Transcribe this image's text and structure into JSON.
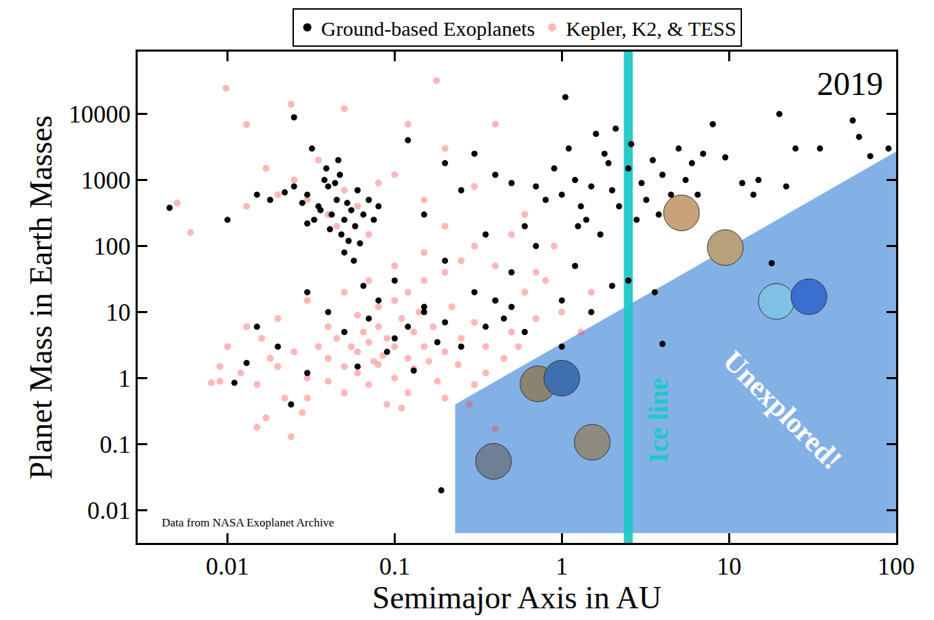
{
  "chart_data": {
    "type": "scatter",
    "log": true,
    "grid": false,
    "legend": "top",
    "xlabel": "Semimajor Axis in AU",
    "ylabel": "Planet Mass in Earth Masses",
    "xlim": [
      0.0029,
      100
    ],
    "ylim": [
      0.0032,
      88000
    ],
    "xticks": [
      0.01,
      0.1,
      1,
      10,
      100
    ],
    "yticks": [
      0.01,
      0.1,
      1,
      10,
      100,
      1000,
      10000
    ],
    "annotations": [
      "2019",
      "Data from NASA Exoplanet Archive"
    ],
    "unexplored": {
      "label": "Unexplored!",
      "color": "#6fa3e0",
      "x": [
        0.23,
        100,
        100,
        0.23
      ],
      "y": [
        0.4,
        2700,
        0.0045,
        0.0045
      ]
    },
    "ice_line": {
      "label": "Ice line",
      "x": 2.5,
      "color": "#1ec8c8"
    },
    "series": [
      {
        "name": "Kepler, K2, & TESS",
        "color": "#ff3333",
        "marker": "circle",
        "x": [
          0.02,
          0.025,
          0.03,
          0.035,
          0.04,
          0.045,
          0.05,
          0.055,
          0.06,
          0.065,
          0.07,
          0.075,
          0.08,
          0.085,
          0.09,
          0.1,
          0.11,
          0.12,
          0.13,
          0.14,
          0.15,
          0.17,
          0.2,
          0.22,
          0.25,
          0.3,
          0.35,
          0.4,
          0.5,
          0.6,
          0.7,
          0.8,
          1,
          1.3,
          0.015,
          0.018,
          0.012,
          0.01,
          0.009,
          0.03,
          0.05,
          0.07,
          0.09,
          0.12,
          0.2,
          0.3,
          0.04,
          0.06,
          0.08,
          0.1,
          0.12,
          0.15,
          0.2,
          0.25,
          0.3,
          0.4,
          0.5,
          0.2,
          0.15,
          0.1,
          0.07,
          0.05,
          0.03,
          0.02,
          0.017,
          0.022,
          0.028,
          0.016,
          0.013,
          0.04,
          0.06,
          0.08,
          0.1,
          0.13,
          0.16,
          0.18,
          0.24,
          0.35,
          0.45,
          0.55,
          0.28,
          0.11,
          0.024,
          0.015,
          0.008,
          0.005,
          0.006,
          0.009,
          0.0098,
          0.013,
          0.024,
          0.178,
          0.03,
          0.04,
          0.05,
          0.025,
          0.045,
          0.06,
          0.035,
          0.02,
          0.07,
          0.08,
          0.1,
          0.15,
          0.2,
          0.3,
          0.4,
          0.05,
          0.12,
          0.013,
          0.017,
          0.6,
          0.9,
          0.7,
          1.5,
          0.4
        ],
        "values": [
          1.5,
          2.5,
          1,
          3,
          2,
          4,
          1.5,
          3,
          2.5,
          5,
          3.5,
          1.8,
          6,
          2.2,
          4,
          3,
          8,
          2,
          5,
          10,
          3,
          6,
          2.5,
          12,
          4,
          7,
          3,
          15,
          5,
          20,
          8,
          30,
          10,
          5,
          0.8,
          2,
          1.2,
          3,
          0.9,
          0.5,
          0.6,
          0.8,
          0.4,
          0.6,
          0.5,
          0.8,
          6,
          9,
          12,
          15,
          20,
          30,
          40,
          60,
          100,
          50,
          150,
          200,
          80,
          50,
          30,
          20,
          15,
          8,
          0.25,
          0.5,
          0.3,
          4,
          6,
          0.9,
          1.2,
          1.6,
          1,
          1.4,
          1.8,
          0.9,
          1.6,
          1.2,
          2,
          3,
          0.4,
          0.35,
          0.13,
          0.18,
          0.85,
          450,
          160,
          1.5,
          24500,
          6900,
          14000,
          32000,
          500,
          300,
          700,
          1000,
          200,
          400,
          2000,
          600,
          150,
          900,
          1200,
          500,
          3000,
          800,
          7000,
          12000,
          7000,
          400,
          1500,
          300,
          100,
          40,
          20,
          0.17
        ]
      },
      {
        "name": "Ground-based Exoplanets",
        "color": "#000000",
        "marker": "circle",
        "x": [
          0.03,
          0.035,
          0.04,
          0.042,
          0.045,
          0.05,
          0.038,
          0.055,
          0.048,
          0.06,
          0.033,
          0.044,
          0.052,
          0.058,
          0.047,
          0.036,
          0.065,
          0.07,
          0.028,
          0.025,
          0.041,
          0.053,
          0.05,
          0.057,
          0.062,
          0.046,
          0.039,
          0.032,
          0.03,
          0.075,
          0.08,
          0.022,
          0.018,
          0.015,
          0.0045,
          0.01,
          0.025,
          0.12,
          0.2,
          0.3,
          0.25,
          0.4,
          0.5,
          0.15,
          0.35,
          0.6,
          1,
          1.2,
          1.5,
          2,
          2.5,
          3,
          1.8,
          1.3,
          1.1,
          2.2,
          3.5,
          4,
          5,
          6,
          0.9,
          0.8,
          1.6,
          2.8,
          1.4,
          2.1,
          3.2,
          4.5,
          7,
          8,
          0.7,
          1.05,
          1.9,
          2.6,
          1.7,
          1.25,
          3.8,
          5.5,
          6.5,
          9.5,
          12,
          15,
          20,
          22,
          25,
          35,
          55,
          60,
          70,
          90,
          18,
          14,
          0.1,
          0.2,
          0.3,
          0.5,
          0.7,
          0.4,
          0.15,
          1.2,
          2,
          1,
          2.5,
          1.5,
          4,
          3.6,
          0.015,
          0.02,
          0.03,
          0.05,
          0.07,
          0.09,
          0.1,
          0.12,
          0.15,
          0.2,
          0.25,
          0.06,
          0.04,
          0.08,
          0.013,
          0.011,
          0.024,
          0.03,
          0.35,
          0.5,
          0.45,
          0.6,
          0.18,
          0.19,
          0.13,
          0.065,
          1
        ],
        "values": [
          600,
          400,
          800,
          300,
          500,
          250,
          1000,
          350,
          150,
          700,
          250,
          900,
          450,
          200,
          1200,
          350,
          300,
          500,
          450,
          800,
          180,
          120,
          80,
          60,
          110,
          2000,
          1500,
          3000,
          220,
          250,
          400,
          650,
          500,
          600,
          380,
          250,
          8900,
          4000,
          1800,
          2500,
          700,
          1200,
          900,
          300,
          150,
          200,
          600,
          1000,
          800,
          700,
          1500,
          900,
          2500,
          400,
          3000,
          400,
          2000,
          1200,
          3000,
          1800,
          1500,
          500,
          5000,
          250,
          250,
          6000,
          500,
          600,
          2500,
          7000,
          800,
          18000,
          1800,
          3500,
          150,
          200,
          300,
          1000,
          600,
          2200,
          900,
          1000,
          10000,
          800,
          3000,
          3000,
          8000,
          4500,
          2300,
          3000,
          55,
          600,
          30,
          60,
          20,
          40,
          100,
          15,
          12,
          50,
          25,
          15,
          30,
          10,
          3.3,
          20,
          6,
          3,
          1.2,
          5,
          8,
          2.5,
          4,
          6,
          10,
          7,
          3,
          1.5,
          10,
          15,
          1.7,
          0.85,
          0.4,
          20,
          6,
          12,
          8,
          5,
          3.5,
          0.02,
          1.3,
          25,
          3
        ]
      }
    ],
    "solar_system": {
      "x": [
        0.39,
        0.72,
        1,
        1.52,
        5.2,
        9.5,
        19.2,
        30.1
      ],
      "values": [
        0.055,
        0.82,
        1,
        0.107,
        318,
        95,
        14.5,
        17.1
      ],
      "colors": [
        "#6f7f96",
        "#8a8370",
        "#3f6fb0",
        "#8e8a80",
        "#c9a27a",
        "#b8a07a",
        "#7fc0e6",
        "#3a6fd0"
      ]
    }
  }
}
